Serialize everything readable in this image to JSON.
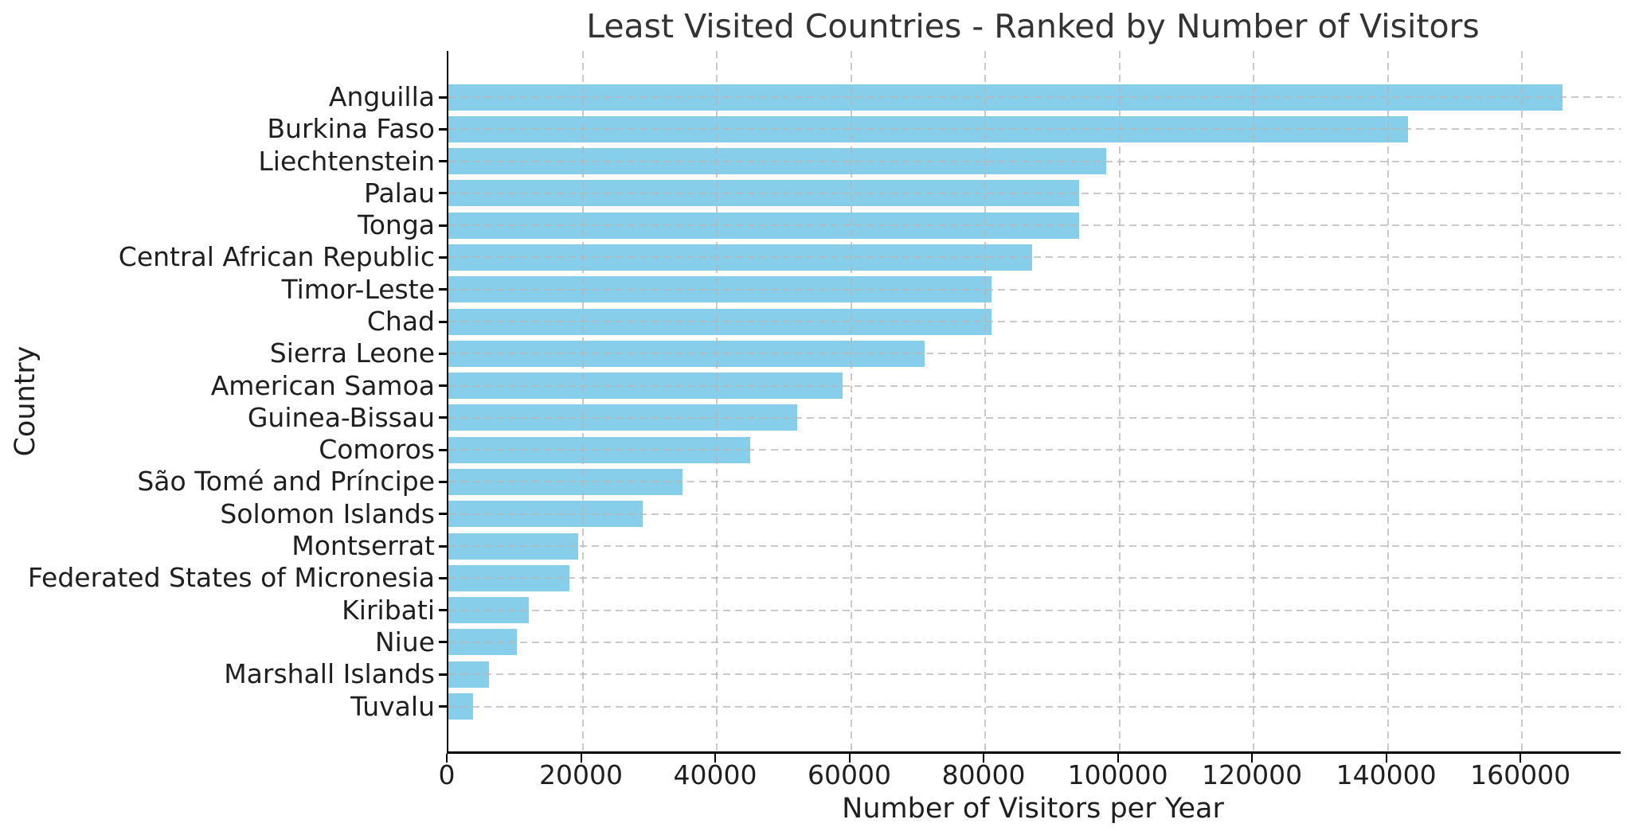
{
  "title": "Least Visited Countries - Ranked by Number of Visitors",
  "chart_data": {
    "type": "bar",
    "orientation": "horizontal",
    "title": "Least Visited Countries - Ranked by Number of Visitors",
    "xlabel": "Number of Visitors per Year",
    "ylabel": "Country",
    "categories": [
      "Anguilla",
      "Burkina Faso",
      "Liechtenstein",
      "Palau",
      "Tonga",
      "Central African Republic",
      "Timor-Leste",
      "Chad",
      "Sierra Leone",
      "American Samoa",
      "Guinea-Bissau",
      "Comoros",
      "São Tomé and Príncipe",
      "Solomon Islands",
      "Montserrat",
      "Federated States of Micronesia",
      "Kiribati",
      "Niue",
      "Marshall Islands",
      "Tuvalu"
    ],
    "values": [
      166000,
      143000,
      98000,
      94000,
      94000,
      87000,
      81000,
      81000,
      71000,
      58800,
      52000,
      45000,
      34900,
      28900,
      19300,
      18000,
      12000,
      10200,
      6100,
      3700
    ],
    "xlim": [
      0,
      174700
    ],
    "xticks": [
      0,
      20000,
      40000,
      60000,
      80000,
      100000,
      120000,
      140000,
      160000
    ],
    "grid": "dashed",
    "grid_color": "#c8c5c3",
    "bar_color": "#87CEEB",
    "legend_position": "none",
    "sort": "descending"
  }
}
